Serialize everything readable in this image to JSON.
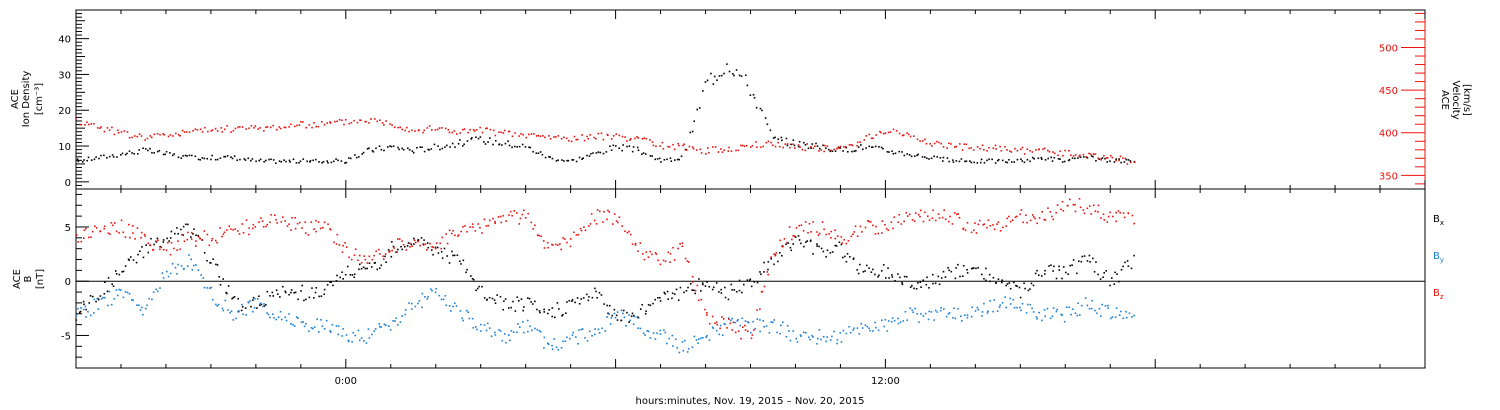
{
  "xlabel": "hours:minutes, Nov. 19, 2015 – Nov. 20, 2015",
  "x_ticks": [
    {
      "label": "0:00",
      "hour": 0
    },
    {
      "label": "12:00",
      "hour": 12
    }
  ],
  "x_range_hours": [
    -6,
    24
  ],
  "chart_data": [
    {
      "type": "scatter",
      "id": "top",
      "xlabel": "hours:minutes, Nov. 19, 2015 – Nov. 20, 2015",
      "x_unit": "hours from Nov. 20, 2015 00:00",
      "left_axis": {
        "label_lines": [
          "ACE",
          "Ion Density",
          "[cm⁻³]"
        ],
        "ylim": [
          -2,
          48
        ],
        "ticks": [
          0,
          10,
          20,
          30,
          40
        ],
        "color": "#000000"
      },
      "right_axis": {
        "label_lines": [
          "ACE",
          "Velocity",
          "[km/s]"
        ],
        "ylim": [
          334,
          544
        ],
        "ticks": [
          350,
          400,
          450,
          500
        ],
        "color": "#e8120f"
      },
      "series": [
        {
          "axis": "left",
          "color": "#000000",
          "x": [
            -6,
            -5.5,
            -5,
            -4.5,
            -4,
            -3.5,
            -3,
            -2.5,
            -2,
            -1.5,
            -1,
            -0.5,
            0,
            0.5,
            1,
            1.5,
            2,
            2.5,
            3,
            3.5,
            4,
            4.5,
            5,
            5.5,
            6,
            6.5,
            7,
            7.5,
            8,
            8.5,
            9,
            9.5,
            10,
            10.5,
            11,
            11.5,
            12,
            12.5,
            13,
            13.5,
            14,
            14.5,
            15,
            15.5,
            16,
            16.5,
            17,
            17.5
          ],
          "y": [
            6,
            7,
            8,
            9,
            8,
            7,
            7,
            7,
            6,
            6,
            6,
            6,
            6,
            9,
            10,
            9,
            10,
            11,
            12,
            11,
            10,
            7,
            6,
            8,
            10,
            9,
            6,
            7,
            28,
            34,
            26,
            12,
            11,
            10,
            9,
            10,
            9,
            8,
            7,
            6,
            6,
            6,
            6,
            7,
            6,
            7,
            6,
            6
          ]
        },
        {
          "axis": "right",
          "color": "#e8120f",
          "x": [
            -6,
            -5.5,
            -5,
            -4.5,
            -4,
            -3.5,
            -3,
            -2.5,
            -2,
            -1.5,
            -1,
            -0.5,
            0,
            0.5,
            1,
            1.5,
            2,
            2.5,
            3,
            3.5,
            4,
            4.5,
            5,
            5.5,
            6,
            6.5,
            7,
            7.5,
            8,
            8.5,
            9,
            9.5,
            10,
            10.5,
            11,
            11.5,
            12,
            12.5,
            13,
            13.5,
            14,
            14.5,
            15,
            15.5,
            16,
            16.5,
            17,
            17.5
          ],
          "y": [
            415,
            408,
            400,
            396,
            398,
            402,
            404,
            406,
            406,
            408,
            410,
            411,
            414,
            416,
            412,
            404,
            406,
            402,
            404,
            400,
            398,
            396,
            394,
            396,
            398,
            392,
            386,
            384,
            380,
            382,
            386,
            388,
            385,
            383,
            382,
            392,
            404,
            398,
            389,
            385,
            383,
            382,
            380,
            379,
            377,
            374,
            372,
            366
          ]
        }
      ]
    },
    {
      "type": "scatter",
      "id": "bottom",
      "xlabel": "hours:minutes, Nov. 19, 2015 – Nov. 20, 2015",
      "x_unit": "hours from Nov. 20, 2015 00:00",
      "left_axis": {
        "label_lines": [
          "ACE",
          "B",
          "[nT]"
        ],
        "ylim": [
          -8,
          8.5
        ],
        "ticks": [
          -5,
          0,
          5
        ],
        "color": "#000000"
      },
      "zero_line": true,
      "legend_position": "right",
      "series": [
        {
          "name": "Bx",
          "name_main": "B",
          "name_sub": "x",
          "color": "#000000",
          "x": [
            -6,
            -5.5,
            -5,
            -4.5,
            -4,
            -3.5,
            -3,
            -2.5,
            -2,
            -1.5,
            -1,
            -0.5,
            0,
            0.5,
            1,
            1.5,
            2,
            2.5,
            3,
            3.5,
            4,
            4.5,
            5,
            5.5,
            6,
            6.5,
            7,
            7.5,
            8,
            8.5,
            9,
            9.5,
            10,
            10.5,
            11,
            11.5,
            12,
            12.5,
            13,
            13.5,
            14,
            14.5,
            15,
            15.5,
            16,
            16.5,
            17,
            17.5
          ],
          "y": [
            -3,
            -1,
            1,
            3,
            4,
            5,
            2,
            -2,
            -2,
            -1,
            -1,
            -1,
            1,
            1,
            3,
            4,
            3,
            2,
            -1,
            -2,
            -2,
            -3,
            -2,
            -1,
            -3,
            -3,
            -1,
            -1,
            0,
            -1,
            0,
            2,
            4,
            3,
            3,
            1,
            1,
            0,
            0,
            1,
            1,
            0,
            -1,
            1,
            1,
            2,
            0,
            2
          ]
        },
        {
          "name": "By",
          "name_main": "B",
          "name_sub": "y",
          "color": "#1a7fd4",
          "x": [
            -6,
            -5.5,
            -5,
            -4.5,
            -4,
            -3.5,
            -3,
            -2.5,
            -2,
            -1.5,
            -1,
            -0.5,
            0,
            0.5,
            1,
            1.5,
            2,
            2.5,
            3,
            3.5,
            4,
            4.5,
            5,
            5.5,
            6,
            6.5,
            7,
            7.5,
            8,
            8.5,
            9,
            9.5,
            10,
            10.5,
            11,
            11.5,
            12,
            12.5,
            13,
            13.5,
            14,
            14.5,
            15,
            15.5,
            16,
            16.5,
            17,
            17.5
          ],
          "y": [
            -3,
            -2,
            -1,
            -3,
            1,
            2,
            -1,
            -3,
            -2,
            -3,
            -4,
            -4,
            -5,
            -5,
            -4,
            -2,
            -1,
            -3,
            -4,
            -5,
            -4,
            -6,
            -5,
            -5,
            -3,
            -4,
            -5,
            -6,
            -5,
            -4,
            -4,
            -4,
            -5,
            -5,
            -5,
            -4,
            -4,
            -3,
            -3,
            -3,
            -3,
            -2,
            -2,
            -3,
            -3,
            -2,
            -3,
            -3
          ]
        },
        {
          "name": "Bz",
          "name_main": "B",
          "name_sub": "z",
          "color": "#e8120f",
          "x": [
            -6,
            -5.5,
            -5,
            -4.5,
            -4,
            -3.5,
            -3,
            -2.5,
            -2,
            -1.5,
            -1,
            -0.5,
            0,
            0.5,
            1,
            1.5,
            2,
            2.5,
            3,
            3.5,
            4,
            4.5,
            5,
            5.5,
            6,
            6.5,
            7,
            7.5,
            8,
            8.5,
            9,
            9.5,
            10,
            10.5,
            11,
            11.5,
            12,
            12.5,
            13,
            13.5,
            14,
            14.5,
            15,
            15.5,
            16,
            16.5,
            17,
            17.5
          ],
          "y": [
            4,
            5,
            5,
            4,
            3,
            4,
            4,
            5,
            5,
            6,
            5,
            5,
            3,
            2,
            3,
            4,
            3,
            5,
            5,
            6,
            6,
            3,
            4,
            6,
            6,
            3,
            2,
            3,
            -3,
            -4,
            -5,
            3,
            5,
            5,
            4,
            5,
            5,
            6,
            6,
            6,
            5,
            5,
            6,
            6,
            7,
            7,
            6,
            6
          ]
        }
      ]
    }
  ]
}
